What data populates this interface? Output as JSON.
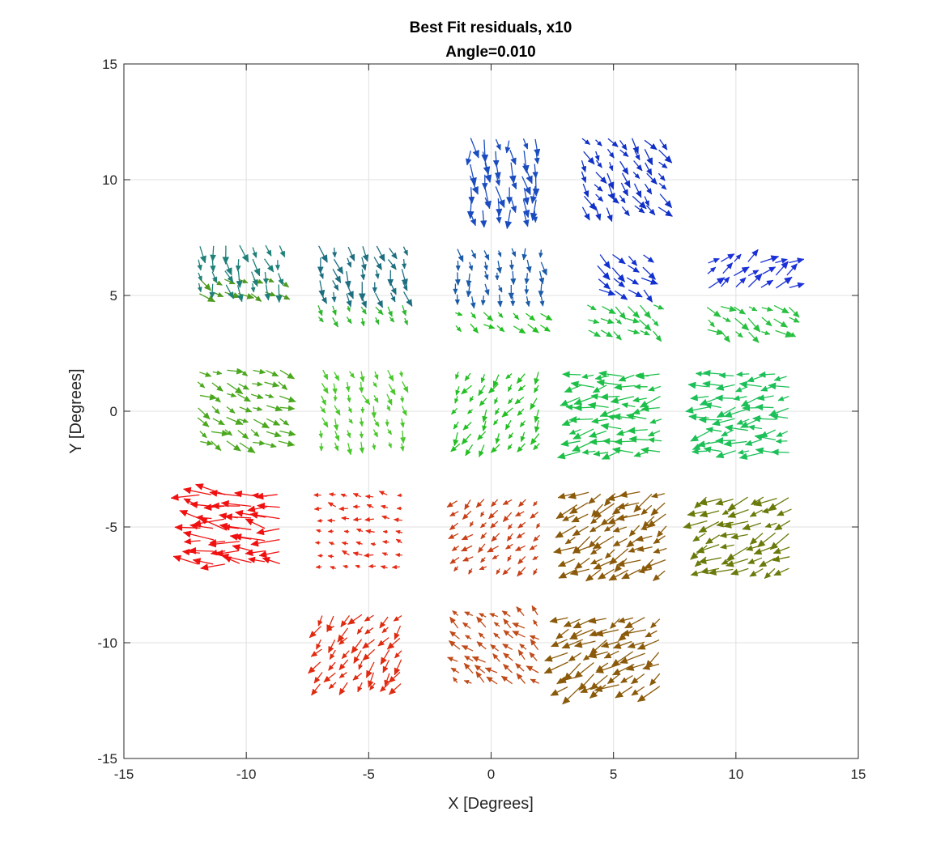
{
  "chart_data": {
    "type": "quiver",
    "title": "Best Fit residuals, x10",
    "subtitle": "Angle=0.010",
    "xlabel": "X [Degrees]",
    "ylabel": "Y [Degrees]",
    "xlim": [
      -15,
      15
    ],
    "ylim": [
      -15,
      15
    ],
    "xticks": [
      -15,
      -10,
      -5,
      0,
      5,
      10,
      15
    ],
    "yticks": [
      -15,
      -10,
      -5,
      0,
      5,
      10,
      15
    ],
    "xtick_labels": [
      "-15",
      "-10",
      "-5",
      "0",
      "5",
      "10",
      "15"
    ],
    "ytick_labels": [
      "-15",
      "-10",
      "-5",
      "0",
      "5",
      "10",
      "15"
    ],
    "grid": true,
    "patches": [
      {
        "name": "p1",
        "center": [
          -10.3,
          5.4
        ],
        "size": [
          3.8,
          1.2
        ],
        "color": "#4c9a1e",
        "dx": 0.7,
        "dy": -0.45,
        "len": 0.55
      },
      {
        "name": "p2",
        "center": [
          -10.3,
          6.3
        ],
        "size": [
          3.8,
          2.2
        ],
        "color": "#1e8078",
        "dx": 0.2,
        "dy": -0.7,
        "len": 0.6
      },
      {
        "name": "p3",
        "center": [
          -5.3,
          4.3
        ],
        "size": [
          4,
          0.9
        ],
        "color": "#2db82d",
        "dx": 0.3,
        "dy": -0.6,
        "len": 0.35
      },
      {
        "name": "p4",
        "center": [
          -5.3,
          6.1
        ],
        "size": [
          4,
          2.5
        ],
        "color": "#1d6e80",
        "dx": 0.3,
        "dy": -0.9,
        "len": 0.6
      },
      {
        "name": "p5",
        "center": [
          0.3,
          4.0
        ],
        "size": [
          4,
          1.1
        ],
        "color": "#22c022",
        "dx": 0.8,
        "dy": -0.5,
        "len": 0.45
      },
      {
        "name": "p6",
        "center": [
          0.3,
          6.0
        ],
        "size": [
          4,
          2.5
        ],
        "color": "#1a5aa8",
        "dx": 0.1,
        "dy": -0.8,
        "len": 0.45
      },
      {
        "name": "p7",
        "center": [
          0.5,
          10.2
        ],
        "size": [
          3.2,
          3.6
        ],
        "color": "#1a4cc0",
        "dx": 0.1,
        "dy": -1.0,
        "len": 0.75
      },
      {
        "name": "p8",
        "center": [
          5.3,
          10.3
        ],
        "size": [
          3.6,
          3.4
        ],
        "color": "#1030c8",
        "dx": 0.6,
        "dy": -0.8,
        "len": 0.6
      },
      {
        "name": "p9",
        "center": [
          5.3,
          6.0
        ],
        "size": [
          2.4,
          2.0
        ],
        "color": "#1030d0",
        "dx": 0.8,
        "dy": -0.6,
        "len": 0.6
      },
      {
        "name": "p10",
        "center": [
          5.3,
          4.0
        ],
        "size": [
          3.2,
          1.6
        ],
        "color": "#20c040",
        "dx": 0.8,
        "dy": -0.5,
        "len": 0.55
      },
      {
        "name": "p11",
        "center": [
          10.5,
          5.9
        ],
        "size": [
          3.8,
          1.6
        ],
        "color": "#1a30d8",
        "dx": 0.8,
        "dy": 0.5,
        "len": 0.65
      },
      {
        "name": "p12",
        "center": [
          10.5,
          4.0
        ],
        "size": [
          3.8,
          1.6
        ],
        "color": "#28c040",
        "dx": 0.8,
        "dy": -0.5,
        "len": 0.6
      },
      {
        "name": "p13",
        "center": [
          -10.3,
          0.2
        ],
        "size": [
          3.8,
          3.6
        ],
        "color": "#4aa81e",
        "dx": 0.85,
        "dy": -0.4,
        "len": 0.6
      },
      {
        "name": "p14",
        "center": [
          -5.3,
          0.2
        ],
        "size": [
          3.8,
          3.6
        ],
        "color": "#48c82a",
        "dx": 0.3,
        "dy": -0.9,
        "len": 0.4
      },
      {
        "name": "p15",
        "center": [
          0.3,
          0.1
        ],
        "size": [
          3.8,
          3.6
        ],
        "color": "#22c022",
        "dx": -0.5,
        "dy": -0.8,
        "len": 0.45
      },
      {
        "name": "p16",
        "center": [
          5.3,
          -0.1
        ],
        "size": [
          3.8,
          3.8
        ],
        "color": "#1cc048",
        "dx": -0.95,
        "dy": -0.15,
        "len": 0.8
      },
      {
        "name": "p17",
        "center": [
          10.5,
          -0.1
        ],
        "size": [
          3.8,
          3.8
        ],
        "color": "#1cc058",
        "dx": -0.95,
        "dy": -0.15,
        "len": 0.75
      },
      {
        "name": "p18",
        "center": [
          -10.3,
          -5.1
        ],
        "size": [
          3.8,
          3.4
        ],
        "color": "#f01010",
        "dx": -0.98,
        "dy": 0.15,
        "len": 1.0
      },
      {
        "name": "p19",
        "center": [
          -5.3,
          -5.2
        ],
        "size": [
          3.8,
          3.6
        ],
        "color": "#e82a14",
        "dx": -0.9,
        "dy": 0.2,
        "len": 0.3
      },
      {
        "name": "p20",
        "center": [
          0.3,
          -5.3
        ],
        "size": [
          3.8,
          3.4
        ],
        "color": "#c84018",
        "dx": -0.7,
        "dy": -0.6,
        "len": 0.4
      },
      {
        "name": "p21",
        "center": [
          5.3,
          -5.2
        ],
        "size": [
          4.2,
          3.8
        ],
        "color": "#8a5a0a",
        "dx": -0.85,
        "dy": -0.5,
        "len": 0.8
      },
      {
        "name": "p22",
        "center": [
          10.5,
          -5.3
        ],
        "size": [
          4.0,
          3.6
        ],
        "color": "#6a7a0a",
        "dx": -0.9,
        "dy": -0.4,
        "len": 0.8
      },
      {
        "name": "p23",
        "center": [
          -5.3,
          -10.3
        ],
        "size": [
          3.8,
          3.4
        ],
        "color": "#e02a10",
        "dx": -0.6,
        "dy": -0.75,
        "len": 0.55
      },
      {
        "name": "p24",
        "center": [
          0.3,
          -10.3
        ],
        "size": [
          3.8,
          3.4
        ],
        "color": "#c04a18",
        "dx": -0.75,
        "dy": 0.6,
        "len": 0.45
      },
      {
        "name": "p25",
        "center": [
          5.0,
          -10.4
        ],
        "size": [
          4.2,
          3.4
        ],
        "color": "#8a5a0a",
        "dx": -0.85,
        "dy": -0.5,
        "len": 0.85
      }
    ]
  }
}
